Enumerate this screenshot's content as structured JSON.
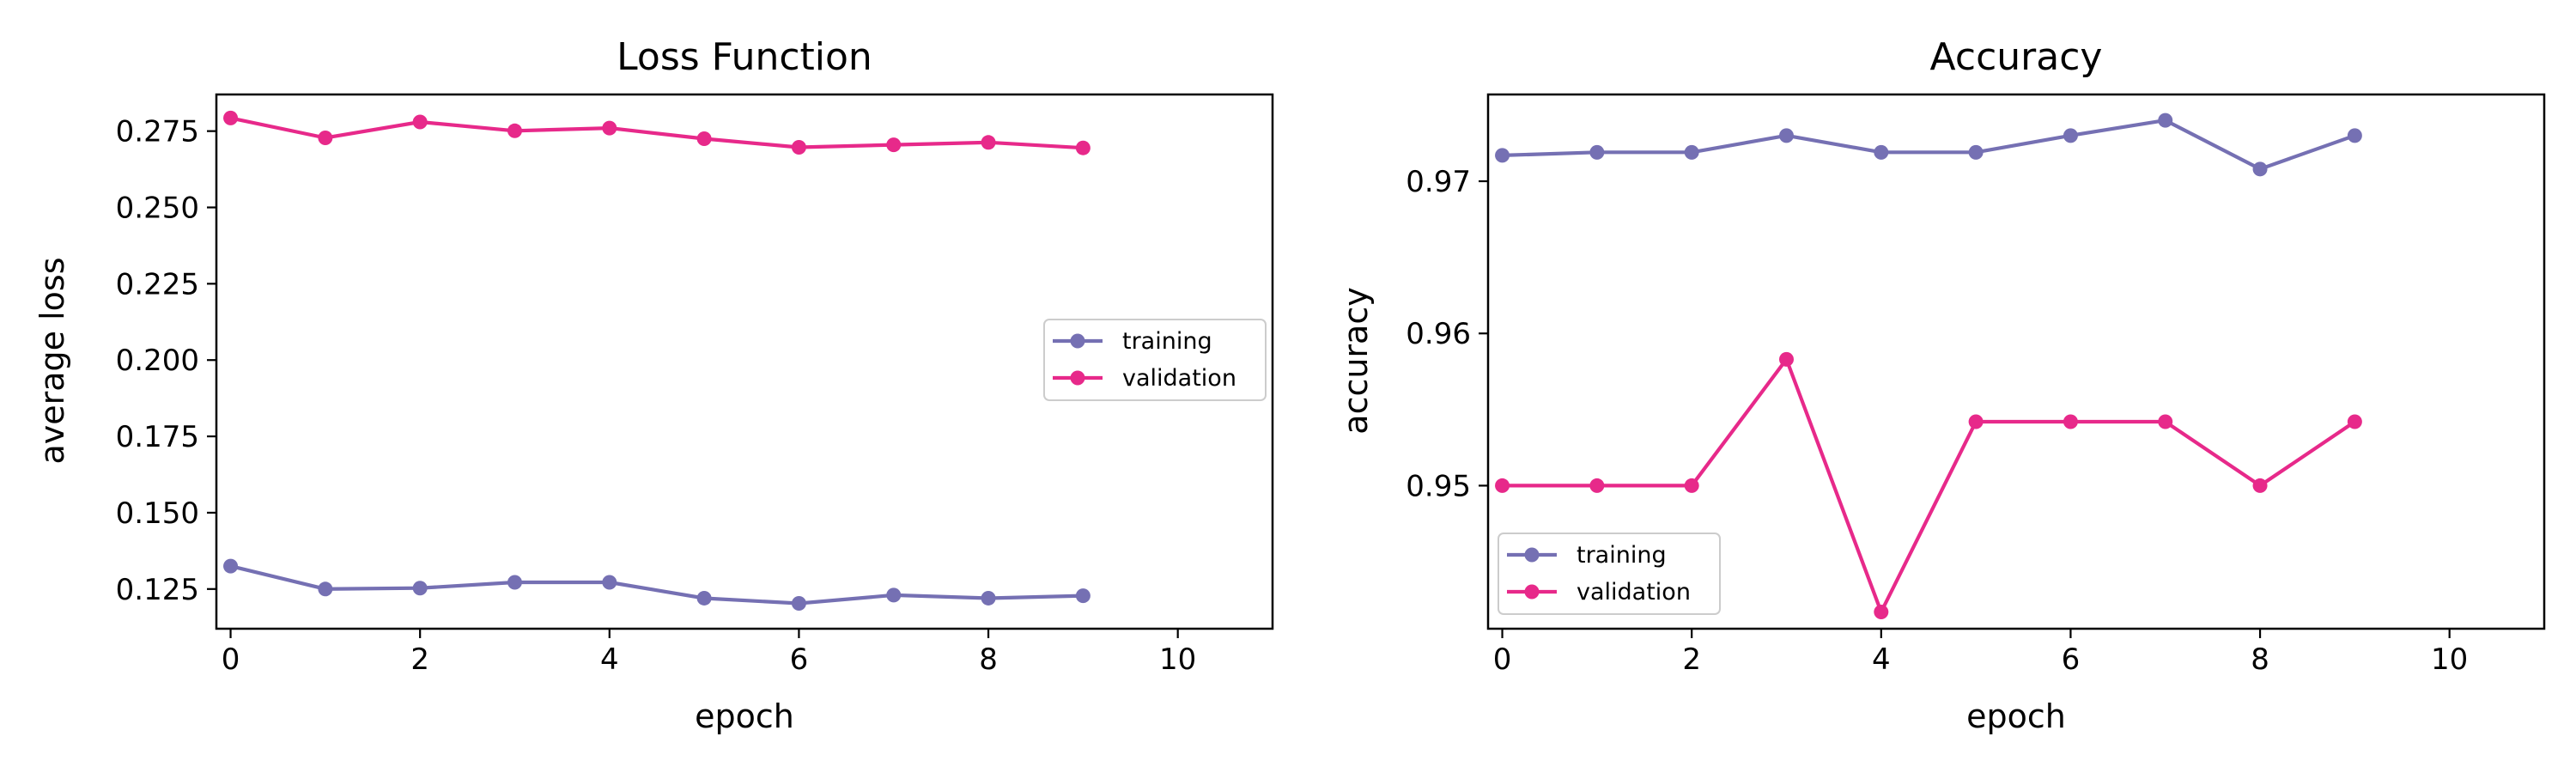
{
  "colors": {
    "training": "#7570b3",
    "validation": "#e7298a"
  },
  "chart_data": [
    {
      "type": "line",
      "title": "Loss Function",
      "xlabel": "epoch",
      "ylabel": "average loss",
      "xlim": [
        -0.15,
        11
      ],
      "ylim": [
        0.112,
        0.287
      ],
      "xticks": [
        0,
        2,
        4,
        6,
        8,
        10
      ],
      "yticks": [
        0.125,
        0.15,
        0.175,
        0.2,
        0.225,
        0.25,
        0.275
      ],
      "ytick_labels": [
        "0.125",
        "0.150",
        "0.175",
        "0.200",
        "0.225",
        "0.250",
        "0.275"
      ],
      "grid": false,
      "legend_position": "center-right",
      "x": [
        0,
        1,
        2,
        3,
        4,
        5,
        6,
        7,
        8,
        9
      ],
      "series": [
        {
          "name": "training",
          "color": "#7570b3",
          "values": [
            0.1325,
            0.125,
            0.1253,
            0.1272,
            0.1272,
            0.122,
            0.1203,
            0.123,
            0.122,
            0.1228
          ]
        },
        {
          "name": "validation",
          "color": "#e7298a",
          "values": [
            0.2793,
            0.2728,
            0.278,
            0.2751,
            0.276,
            0.2725,
            0.2697,
            0.2705,
            0.2713,
            0.2695
          ]
        }
      ]
    },
    {
      "type": "line",
      "title": "Accuracy",
      "xlabel": "epoch",
      "ylabel": "accuracy",
      "xlim": [
        -0.15,
        11
      ],
      "ylim": [
        0.9406,
        0.9757
      ],
      "xticks": [
        0,
        2,
        4,
        6,
        8,
        10
      ],
      "yticks": [
        0.95,
        0.96,
        0.97
      ],
      "ytick_labels": [
        "0.95",
        "0.96",
        "0.97"
      ],
      "grid": false,
      "legend_position": "lower-left",
      "x": [
        0,
        1,
        2,
        3,
        4,
        5,
        6,
        7,
        8,
        9
      ],
      "series": [
        {
          "name": "training",
          "color": "#7570b3",
          "values": [
            0.9717,
            0.9719,
            0.9719,
            0.973,
            0.9719,
            0.9719,
            0.973,
            0.974,
            0.9708,
            0.973
          ]
        },
        {
          "name": "validation",
          "color": "#e7298a",
          "values": [
            0.95,
            0.95,
            0.95,
            0.9583,
            0.9417,
            0.9542,
            0.9542,
            0.9542,
            0.95,
            0.9542
          ]
        }
      ]
    }
  ]
}
